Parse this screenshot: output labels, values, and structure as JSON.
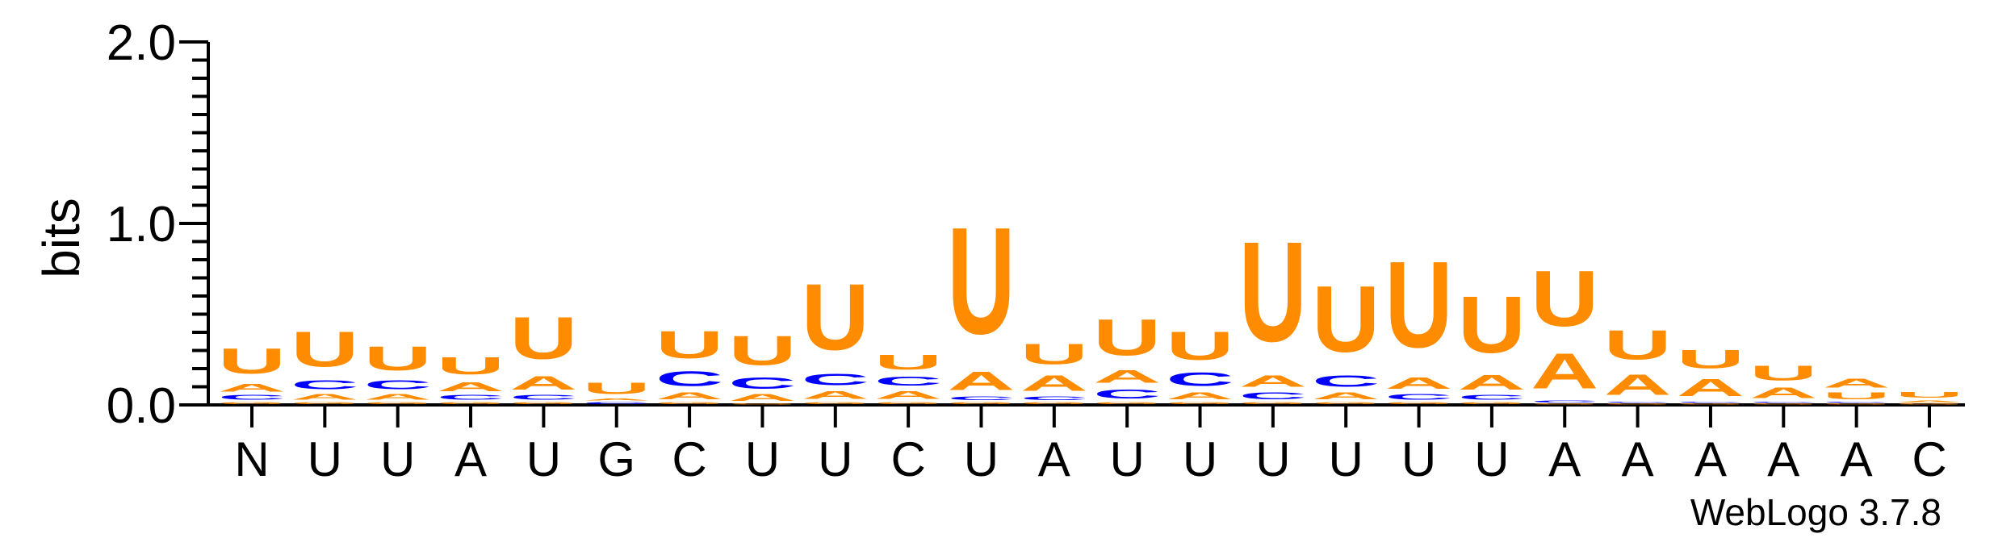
{
  "chart_data": {
    "type": "sequence-logo",
    "ylabel": "bits",
    "ylim": [
      0,
      2.0
    ],
    "yticks": [
      {
        "value": 0.0,
        "label": "0.0"
      },
      {
        "value": 1.0,
        "label": "1.0"
      },
      {
        "value": 2.0,
        "label": "2.0"
      }
    ],
    "colors": {
      "U": "#ff8c00",
      "A": "#ff8c00",
      "G": "#ff8c00",
      "C": "#0000ff"
    },
    "xlabels": [
      "N",
      "U",
      "U",
      "A",
      "U",
      "G",
      "C",
      "U",
      "U",
      "C",
      "U",
      "A",
      "U",
      "U",
      "U",
      "U",
      "U",
      "U",
      "A",
      "A",
      "A",
      "A",
      "A",
      "C"
    ],
    "positions": [
      {
        "label": "N",
        "stack": [
          {
            "letter": "G",
            "height": 0.02
          },
          {
            "letter": "C",
            "height": 0.04
          },
          {
            "letter": "A",
            "height": 0.07
          },
          {
            "letter": "U",
            "height": 0.22
          }
        ]
      },
      {
        "label": "U",
        "stack": [
          {
            "letter": "G",
            "height": 0.02
          },
          {
            "letter": "A",
            "height": 0.05
          },
          {
            "letter": "C",
            "height": 0.08
          },
          {
            "letter": "U",
            "height": 0.31
          }
        ]
      },
      {
        "label": "U",
        "stack": [
          {
            "letter": "G",
            "height": 0.02
          },
          {
            "letter": "A",
            "height": 0.05
          },
          {
            "letter": "C",
            "height": 0.08
          },
          {
            "letter": "U",
            "height": 0.21
          }
        ]
      },
      {
        "label": "A",
        "stack": [
          {
            "letter": "G",
            "height": 0.02
          },
          {
            "letter": "C",
            "height": 0.04
          },
          {
            "letter": "A",
            "height": 0.08
          },
          {
            "letter": "U",
            "height": 0.15
          }
        ]
      },
      {
        "label": "U",
        "stack": [
          {
            "letter": "G",
            "height": 0.02
          },
          {
            "letter": "C",
            "height": 0.04
          },
          {
            "letter": "A",
            "height": 0.12
          },
          {
            "letter": "U",
            "height": 0.37
          }
        ]
      },
      {
        "label": "G",
        "stack": [
          {
            "letter": "C",
            "height": 0.02
          },
          {
            "letter": "A",
            "height": 0.02
          },
          {
            "letter": "U",
            "height": 0.1
          }
        ]
      },
      {
        "label": "C",
        "stack": [
          {
            "letter": "G",
            "height": 0.02
          },
          {
            "letter": "A",
            "height": 0.06
          },
          {
            "letter": "C",
            "height": 0.13
          },
          {
            "letter": "U",
            "height": 0.24
          }
        ]
      },
      {
        "label": "U",
        "stack": [
          {
            "letter": "G",
            "height": 0.01
          },
          {
            "letter": "A",
            "height": 0.06
          },
          {
            "letter": "C",
            "height": 0.1
          },
          {
            "letter": "U",
            "height": 0.26
          }
        ]
      },
      {
        "label": "U",
        "stack": [
          {
            "letter": "G",
            "height": 0.02
          },
          {
            "letter": "A",
            "height": 0.07
          },
          {
            "letter": "C",
            "height": 0.1
          },
          {
            "letter": "U",
            "height": 0.58
          }
        ]
      },
      {
        "label": "C",
        "stack": [
          {
            "letter": "G",
            "height": 0.02
          },
          {
            "letter": "A",
            "height": 0.07
          },
          {
            "letter": "C",
            "height": 0.08
          },
          {
            "letter": "U",
            "height": 0.13
          }
        ]
      },
      {
        "label": "U",
        "stack": [
          {
            "letter": "G",
            "height": 0.02
          },
          {
            "letter": "C",
            "height": 0.03
          },
          {
            "letter": "A",
            "height": 0.16
          },
          {
            "letter": "U",
            "height": 0.94
          }
        ]
      },
      {
        "label": "A",
        "stack": [
          {
            "letter": "G",
            "height": 0.02
          },
          {
            "letter": "C",
            "height": 0.03
          },
          {
            "letter": "A",
            "height": 0.14
          },
          {
            "letter": "U",
            "height": 0.18
          }
        ]
      },
      {
        "label": "U",
        "stack": [
          {
            "letter": "G",
            "height": 0.02
          },
          {
            "letter": "C",
            "height": 0.08
          },
          {
            "letter": "A",
            "height": 0.11
          },
          {
            "letter": "U",
            "height": 0.32
          }
        ]
      },
      {
        "label": "U",
        "stack": [
          {
            "letter": "G",
            "height": 0.02
          },
          {
            "letter": "A",
            "height": 0.06
          },
          {
            "letter": "C",
            "height": 0.12
          },
          {
            "letter": "U",
            "height": 0.25
          }
        ]
      },
      {
        "label": "U",
        "stack": [
          {
            "letter": "G",
            "height": 0.02
          },
          {
            "letter": "C",
            "height": 0.06
          },
          {
            "letter": "A",
            "height": 0.1
          },
          {
            "letter": "U",
            "height": 0.88
          }
        ]
      },
      {
        "label": "U",
        "stack": [
          {
            "letter": "G",
            "height": 0.02
          },
          {
            "letter": "A",
            "height": 0.06
          },
          {
            "letter": "C",
            "height": 0.1
          },
          {
            "letter": "U",
            "height": 0.58
          }
        ]
      },
      {
        "label": "U",
        "stack": [
          {
            "letter": "G",
            "height": 0.02
          },
          {
            "letter": "C",
            "height": 0.05
          },
          {
            "letter": "A",
            "height": 0.1
          },
          {
            "letter": "U",
            "height": 0.76
          }
        ]
      },
      {
        "label": "U",
        "stack": [
          {
            "letter": "G",
            "height": 0.02
          },
          {
            "letter": "C",
            "height": 0.04
          },
          {
            "letter": "A",
            "height": 0.13
          },
          {
            "letter": "U",
            "height": 0.5
          }
        ]
      },
      {
        "label": "A",
        "stack": [
          {
            "letter": "G",
            "height": 0.01
          },
          {
            "letter": "C",
            "height": 0.02
          },
          {
            "letter": "A",
            "height": 0.31
          },
          {
            "letter": "U",
            "height": 0.49
          }
        ]
      },
      {
        "label": "A",
        "stack": [
          {
            "letter": "G",
            "height": 0.01
          },
          {
            "letter": "C",
            "height": 0.01
          },
          {
            "letter": "A",
            "height": 0.18
          },
          {
            "letter": "U",
            "height": 0.26
          }
        ]
      },
      {
        "label": "A",
        "stack": [
          {
            "letter": "G",
            "height": 0.01
          },
          {
            "letter": "C",
            "height": 0.01
          },
          {
            "letter": "A",
            "height": 0.15
          },
          {
            "letter": "U",
            "height": 0.16
          }
        ]
      },
      {
        "label": "A",
        "stack": [
          {
            "letter": "G",
            "height": 0.01
          },
          {
            "letter": "C",
            "height": 0.01
          },
          {
            "letter": "A",
            "height": 0.09
          },
          {
            "letter": "U",
            "height": 0.13
          }
        ]
      },
      {
        "label": "A",
        "stack": [
          {
            "letter": "G",
            "height": 0.01
          },
          {
            "letter": "C",
            "height": 0.01
          },
          {
            "letter": "U",
            "height": 0.06
          },
          {
            "letter": "A",
            "height": 0.08
          }
        ]
      },
      {
        "label": "C",
        "stack": [
          {
            "letter": "G",
            "height": 0.01
          },
          {
            "letter": "A",
            "height": 0.02
          },
          {
            "letter": "U",
            "height": 0.05
          }
        ]
      }
    ]
  },
  "credit": "WebLogo 3.7.8"
}
